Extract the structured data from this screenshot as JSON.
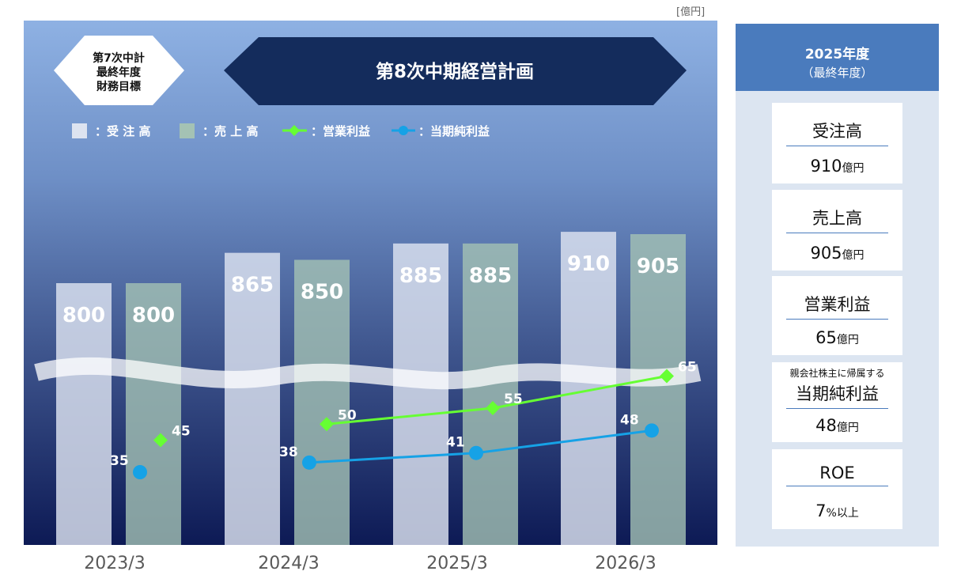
{
  "unit_label": "[億円]",
  "previous_plan_badge": [
    "第7次中計",
    "最終年度",
    "財務目標"
  ],
  "plan_title": "第8次中期経営計画",
  "colors": {
    "orders_bar": "#dde3f0",
    "sales_bar": "#a4c2b4",
    "operating_profit": "#66ff33",
    "net_income": "#16a2e6",
    "title_banner": "#142c5c",
    "right_header": "#4a7bbd"
  },
  "chart_data": {
    "type": "bar",
    "categories": [
      "2023/3",
      "2024/3",
      "2025/3",
      "2026/3"
    ],
    "series": [
      {
        "name": "受 注 高",
        "kind": "bar",
        "values": [
          800,
          865,
          885,
          910
        ]
      },
      {
        "name": "売 上 高",
        "kind": "bar",
        "values": [
          800,
          850,
          885,
          905
        ]
      },
      {
        "name": "営業利益",
        "kind": "line",
        "values": [
          45,
          50,
          55,
          65
        ]
      },
      {
        "name": "当期純利益",
        "kind": "line",
        "values": [
          35,
          38,
          41,
          48
        ]
      }
    ],
    "legend": [
      {
        "prefix": "：",
        "name": "受 注 高"
      },
      {
        "prefix": "：",
        "name": "売 上 高"
      },
      {
        "prefix": "：",
        "name": "営業利益"
      },
      {
        "prefix": "：",
        "name": "当期純利益"
      }
    ],
    "axis_break": true,
    "bar_axis_range": [
      650,
      950
    ],
    "line_axis_range": [
      0,
      100
    ],
    "legend_position": "top-left",
    "grid": false
  },
  "summary": {
    "header_year": "2025年度",
    "header_sub": "（最終年度）",
    "cards": [
      {
        "note": "",
        "label": "受注高",
        "value": "910",
        "unit": "億円"
      },
      {
        "note": "",
        "label": "売上高",
        "value": "905",
        "unit": "億円"
      },
      {
        "note": "",
        "label": "営業利益",
        "value": "65",
        "unit": "億円"
      },
      {
        "note": "親会社株主に帰属する",
        "label": "当期純利益",
        "value": "48",
        "unit": "億円"
      },
      {
        "note": "",
        "label": "ROE",
        "value": "7",
        "unit": "%以上"
      }
    ]
  }
}
